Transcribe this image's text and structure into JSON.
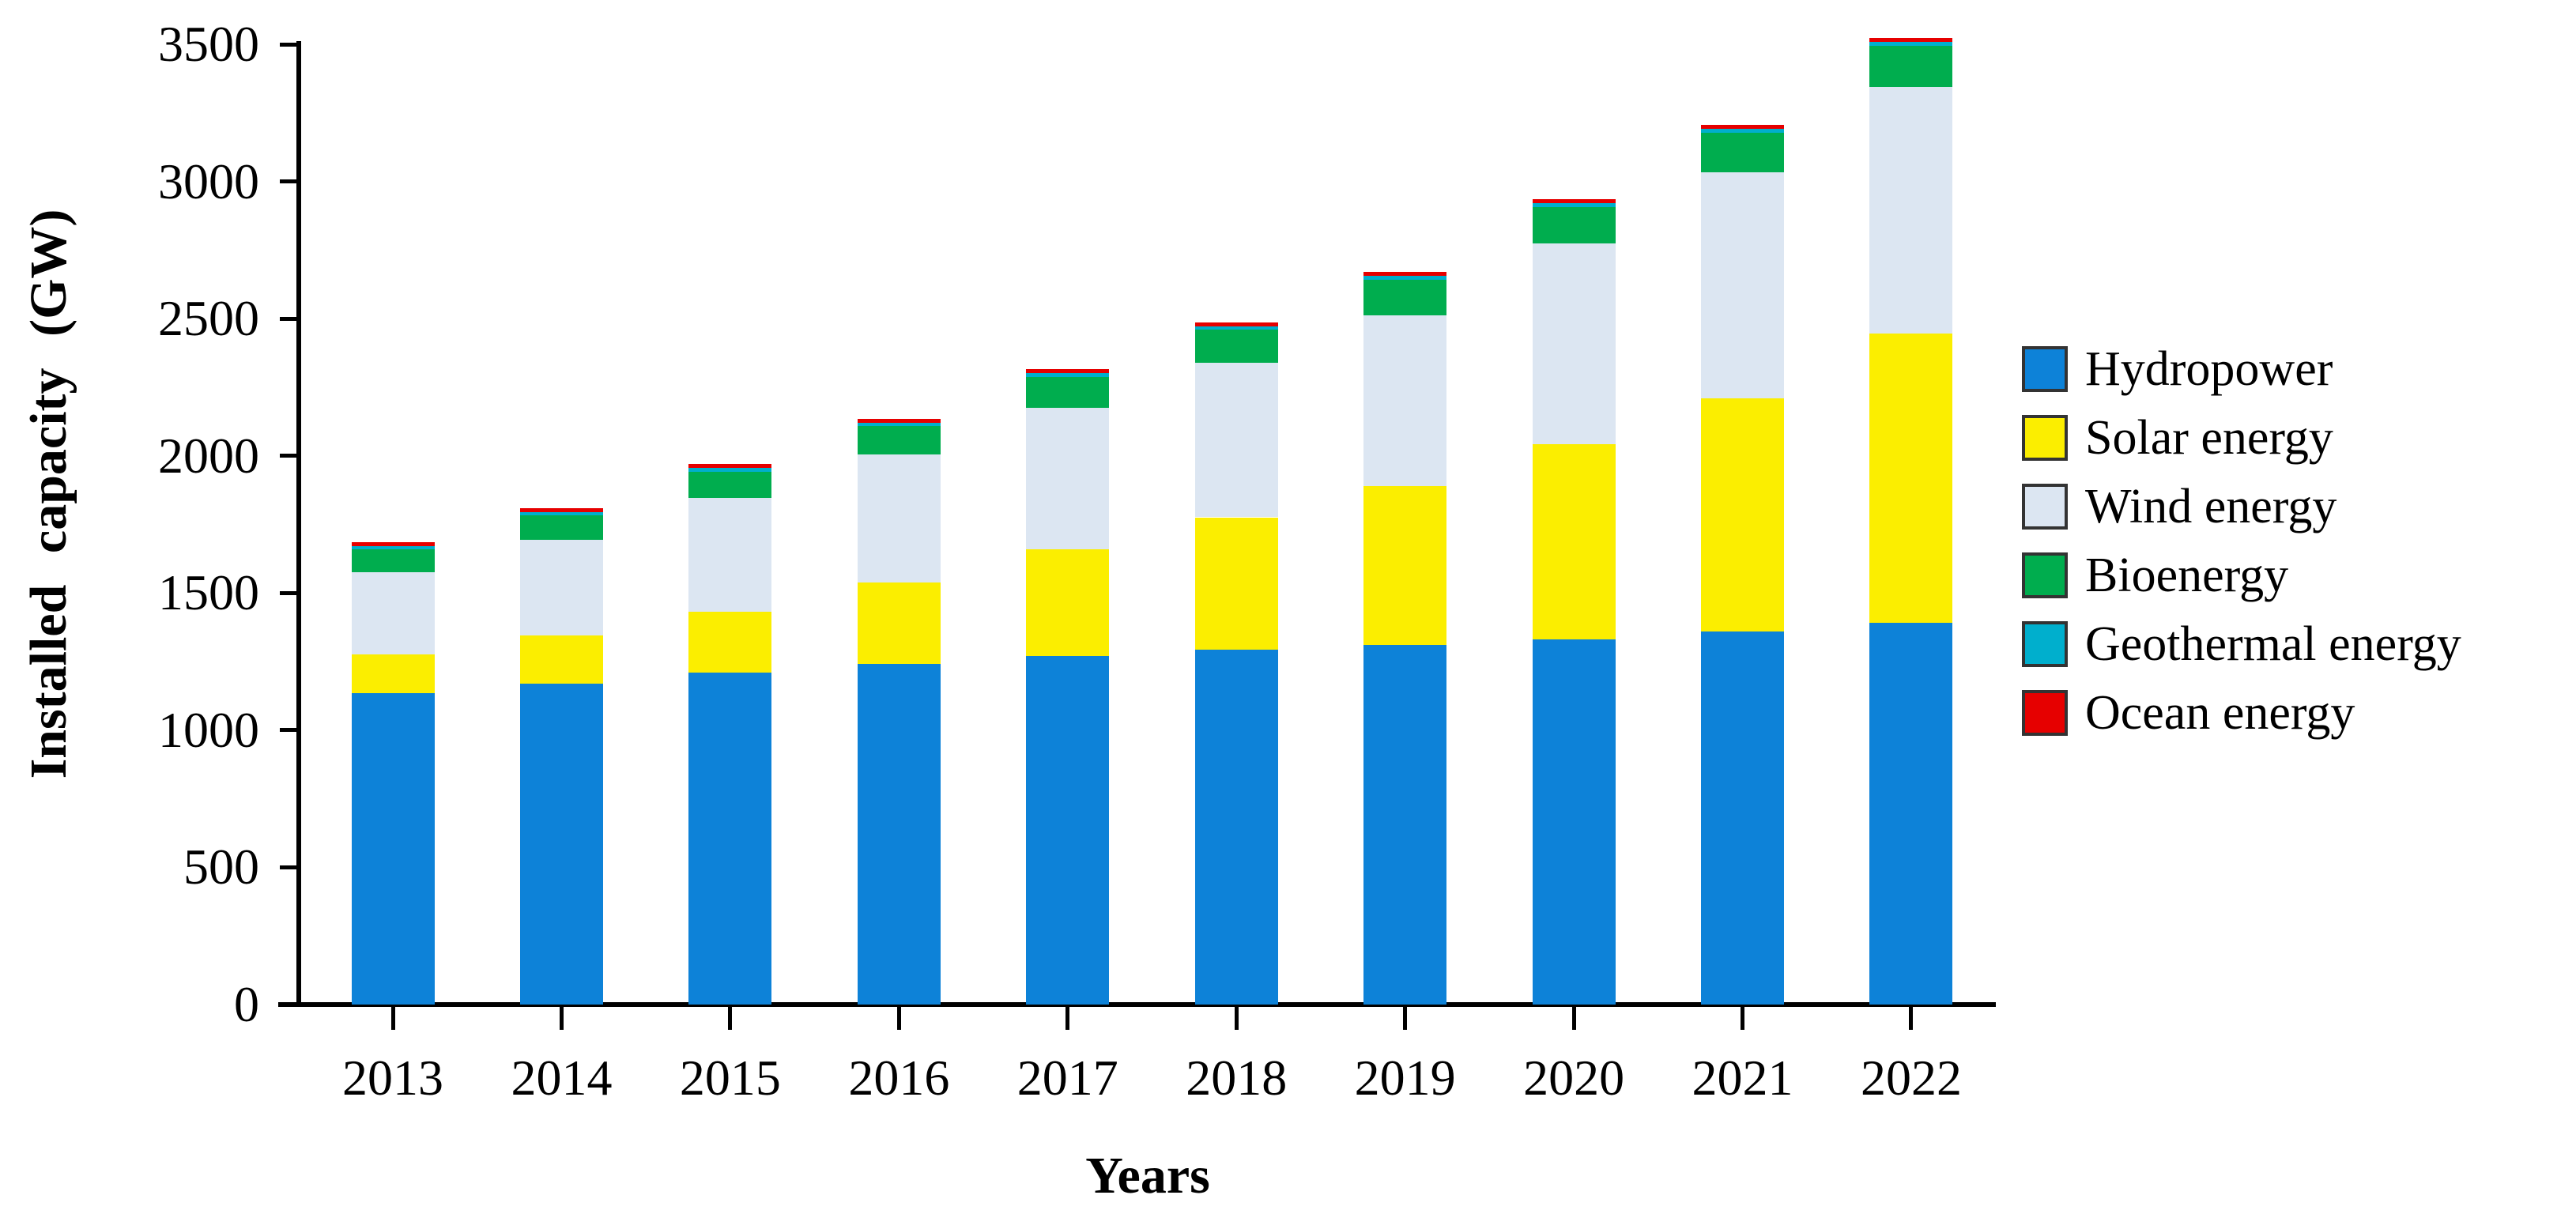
{
  "chart_data": {
    "type": "bar",
    "stacked": true,
    "title": "",
    "xlabel": "Years",
    "ylabel": "Installed capacity (GW)",
    "categories": [
      "2013",
      "2014",
      "2015",
      "2016",
      "2017",
      "2018",
      "2019",
      "2020",
      "2021",
      "2022"
    ],
    "series": [
      {
        "name": "Hydropower",
        "color": "#0d82d8",
        "values": [
          1136,
          1171,
          1209,
          1242,
          1271,
          1293,
          1310,
          1332,
          1360,
          1392
        ]
      },
      {
        "name": "Solar energy",
        "color": "#fbee00",
        "values": [
          139,
          175,
          222,
          295,
          389,
          483,
          580,
          710,
          849,
          1053
        ]
      },
      {
        "name": "Wind energy",
        "color": "#dce6f2",
        "values": [
          300,
          349,
          416,
          467,
          514,
          563,
          622,
          731,
          824,
          899
        ]
      },
      {
        "name": "Bioenergy",
        "color": "#00ad4e",
        "values": [
          84,
          89,
          96,
          104,
          114,
          121,
          129,
          133,
          143,
          149
        ]
      },
      {
        "name": "Geothermal energy",
        "color": "#00afcd",
        "values": [
          11,
          11,
          12,
          12,
          13,
          13,
          14,
          14,
          15,
          15
        ]
      },
      {
        "name": "Ocean energy",
        "color": "#e60000",
        "values": [
          0.5,
          0.5,
          0.5,
          0.5,
          0.5,
          0.5,
          0.5,
          0.5,
          0.5,
          0.5
        ]
      }
    ],
    "ylim": [
      0,
      3500
    ],
    "ytick_step": 500,
    "ytick_labels": [
      "0",
      "500",
      "1000",
      "1500",
      "2000",
      "2500",
      "3000",
      "3500"
    ],
    "grid": false,
    "legend_position": "right",
    "axis_color": "#000000",
    "background_color": "#ffffff"
  }
}
